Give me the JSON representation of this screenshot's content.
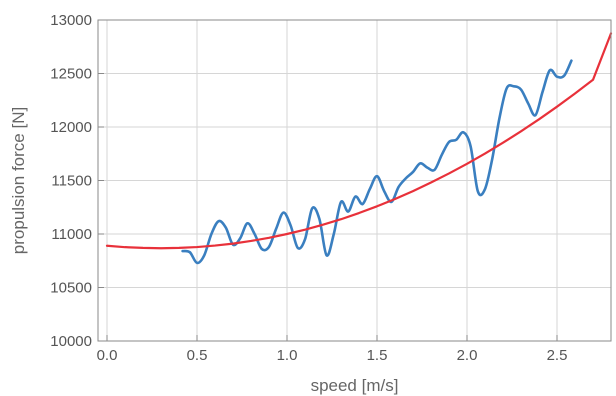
{
  "chart_data": {
    "type": "line",
    "title": "",
    "xlabel": "speed [m/s]",
    "ylabel": "propulsion force [N]",
    "xlim": [
      -0.05,
      2.8
    ],
    "ylim": [
      10000,
      13000
    ],
    "grid": true,
    "x_ticks": [
      0.0,
      0.5,
      1.0,
      1.5,
      2.0,
      2.5
    ],
    "x_tick_labels": [
      "0.0",
      "0.5",
      "1.0",
      "1.5",
      "2.0",
      "2.5"
    ],
    "y_ticks": [
      10000,
      10500,
      11000,
      11500,
      12000,
      12500,
      13000
    ],
    "y_tick_labels": [
      "10000",
      "10500",
      "11000",
      "11500",
      "12000",
      "12500",
      "13000"
    ],
    "series": [
      {
        "color": "#3a7fc0",
        "style": "measured",
        "x": [
          0.42,
          0.46,
          0.5,
          0.54,
          0.58,
          0.62,
          0.66,
          0.7,
          0.74,
          0.78,
          0.82,
          0.86,
          0.9,
          0.94,
          0.98,
          1.02,
          1.06,
          1.1,
          1.14,
          1.18,
          1.22,
          1.26,
          1.3,
          1.34,
          1.38,
          1.42,
          1.46,
          1.5,
          1.54,
          1.58,
          1.62,
          1.66,
          1.7,
          1.74,
          1.78,
          1.82,
          1.86,
          1.9,
          1.94,
          1.98,
          2.02,
          2.06,
          2.1,
          2.14,
          2.18,
          2.22,
          2.26,
          2.3,
          2.34,
          2.38,
          2.42,
          2.46,
          2.5,
          2.54,
          2.58
        ],
        "y": [
          10840,
          10830,
          10730,
          10800,
          11000,
          11120,
          11060,
          10900,
          10960,
          11100,
          11000,
          10860,
          10880,
          11050,
          11200,
          11080,
          10870,
          10950,
          11240,
          11140,
          10800,
          11000,
          11300,
          11210,
          11350,
          11280,
          11420,
          11540,
          11400,
          11300,
          11440,
          11520,
          11580,
          11660,
          11620,
          11600,
          11740,
          11860,
          11880,
          11950,
          11820,
          11400,
          11420,
          11700,
          12080,
          12360,
          12380,
          12350,
          12220,
          12110,
          12330,
          12530,
          12470,
          12480,
          12620
        ]
      },
      {
        "color": "#e8313a",
        "style": "fit",
        "x": [
          0.0,
          0.1,
          0.2,
          0.3,
          0.4,
          0.5,
          0.6,
          0.7,
          0.8,
          0.9,
          1.0,
          1.1,
          1.2,
          1.3,
          1.4,
          1.5,
          1.6,
          1.7,
          1.8,
          1.9,
          2.0,
          2.1,
          2.2,
          2.3,
          2.4,
          2.5,
          2.6,
          2.7,
          2.8
        ],
        "y": [
          10890,
          10877,
          10870,
          10867,
          10870,
          10878,
          10892,
          10910,
          10935,
          10964,
          11000,
          11040,
          11087,
          11138,
          11196,
          11259,
          11327,
          11401,
          11481,
          11566,
          11656,
          11752,
          11853,
          11960,
          12072,
          12190,
          12313,
          12441,
          12875
        ]
      }
    ]
  }
}
